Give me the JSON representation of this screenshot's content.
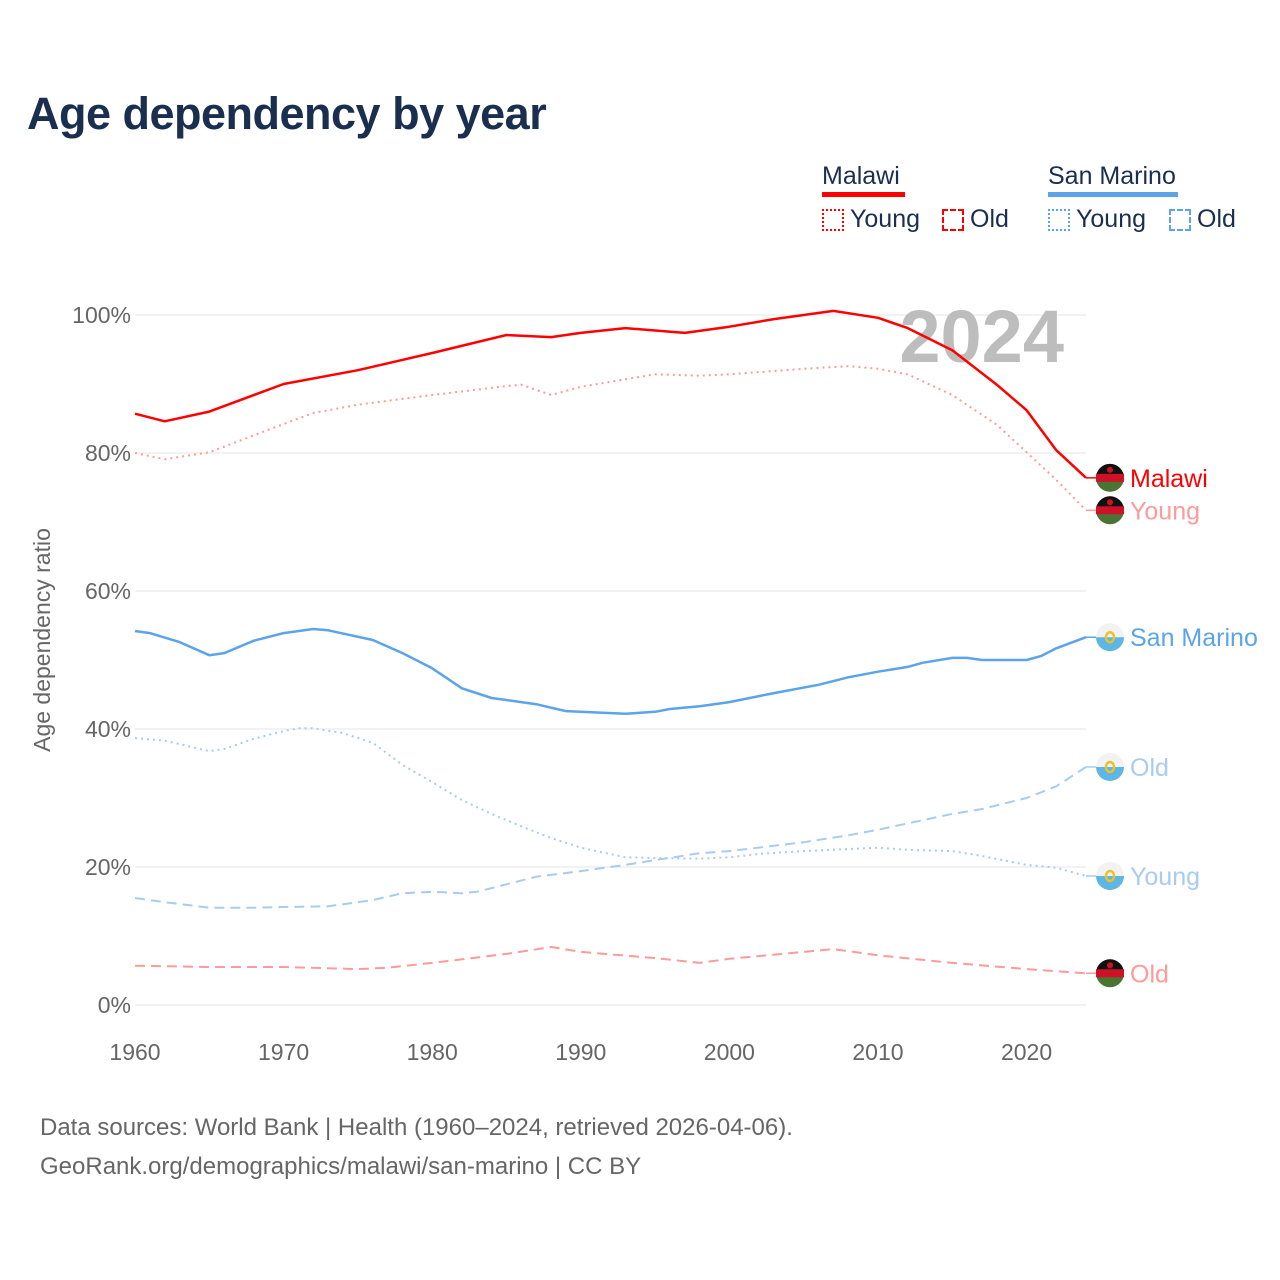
{
  "title": "Age dependency by year",
  "legend": {
    "countries": [
      {
        "name": "Malawi",
        "color": "#ff0000",
        "items": [
          "Young",
          "Old"
        ]
      },
      {
        "name": "San Marino",
        "color": "#5ba4ea",
        "items": [
          "Young",
          "Old"
        ]
      }
    ]
  },
  "footer": {
    "line1": "Data sources: World Bank | Health (1960–2024, retrieved 2026-04-06).",
    "line2": "GeoRank.org/demographics/malawi/san-marino | CC BY"
  },
  "chart_data": {
    "type": "line",
    "title": "Age dependency by year",
    "ylabel": "Age dependency ratio",
    "xlabel": "",
    "xlim": [
      1960,
      2024
    ],
    "ylim": [
      0,
      100
    ],
    "xticks": [
      1960,
      1970,
      1980,
      1990,
      2000,
      2010,
      2020
    ],
    "yticks": [
      0,
      20,
      40,
      60,
      80,
      100
    ],
    "ytick_labels": [
      "0%",
      "20%",
      "40%",
      "60%",
      "80%",
      "100%"
    ],
    "grid": true,
    "year_watermark": "2024",
    "legend_position": "top-right",
    "series": [
      {
        "name": "Malawi",
        "label": "Malawi",
        "color": "#ff0000",
        "style": "solid",
        "flag": "malawi",
        "x": [
          1960,
          1962,
          1965,
          1970,
          1975,
          1980,
          1985,
          1988,
          1990,
          1993,
          1997,
          2000,
          2003,
          2007,
          2010,
          2012,
          2015,
          2018,
          2020,
          2022,
          2024
        ],
        "y": [
          85.7,
          84.6,
          86,
          90,
          92,
          94.5,
          97.1,
          96.8,
          97.4,
          98.1,
          97.4,
          98.3,
          99.4,
          100.6,
          99.6,
          98.1,
          94.9,
          89.9,
          86.2,
          80.4,
          76.4
        ]
      },
      {
        "name": "Malawi Young",
        "label": "Young",
        "color": "#ff9a9a",
        "style": "dotted",
        "flag": "malawi",
        "x": [
          1960,
          1962,
          1965,
          1970,
          1972,
          1975,
          1980,
          1985,
          1986,
          1988,
          1990,
          1995,
          1998,
          2000,
          2005,
          2008,
          2010,
          2012,
          2015,
          2018,
          2020,
          2022,
          2024
        ],
        "y": [
          80,
          79.1,
          80.1,
          84.2,
          85.8,
          87,
          88.4,
          89.7,
          89.9,
          88.4,
          89.6,
          91.4,
          91.2,
          91.4,
          92.2,
          92.6,
          92.2,
          91.4,
          88.4,
          84.1,
          80.1,
          76.1,
          71.7
        ]
      },
      {
        "name": "Malawi Old",
        "label": "Old",
        "color": "#ff9a9a",
        "style": "dashed",
        "flag": "malawi",
        "x": [
          1960,
          1965,
          1970,
          1975,
          1977,
          1980,
          1985,
          1988,
          1990,
          1995,
          1998,
          2000,
          2004,
          2007,
          2010,
          2015,
          2020,
          2024
        ],
        "y": [
          5.7,
          5.5,
          5.5,
          5.2,
          5.4,
          6.1,
          7.4,
          8.4,
          7.7,
          6.8,
          6.1,
          6.7,
          7.5,
          8.1,
          7.2,
          6.1,
          5.2,
          4.6
        ]
      },
      {
        "name": "San Marino",
        "label": "San Marino",
        "color": "#5ba4ea",
        "style": "solid",
        "flag": "san-marino",
        "x": [
          1960,
          1961,
          1963,
          1965,
          1966,
          1968,
          1970,
          1972,
          1973,
          1976,
          1978,
          1980,
          1982,
          1984,
          1987,
          1989,
          1993,
          1995,
          1996,
          1998,
          2000,
          2003,
          2006,
          2008,
          2010,
          2012,
          2013,
          2015,
          2016,
          2017,
          2020,
          2021,
          2022,
          2024
        ],
        "y": [
          54.2,
          53.9,
          52.6,
          50.7,
          51,
          52.8,
          53.9,
          54.5,
          54.3,
          52.9,
          51,
          48.8,
          45.9,
          44.5,
          43.6,
          42.6,
          42.2,
          42.5,
          42.9,
          43.3,
          43.9,
          45.2,
          46.4,
          47.5,
          48.3,
          49,
          49.6,
          50.3,
          50.3,
          50,
          50,
          50.6,
          51.7,
          53.3
        ]
      },
      {
        "name": "San Marino Old",
        "label": "Old",
        "color": "#a8cbf2",
        "style": "dashed",
        "flag": "san-marino",
        "x": [
          1960,
          1962,
          1965,
          1968,
          1970,
          1973,
          1976,
          1978,
          1980,
          1982,
          1983,
          1985,
          1987,
          1990,
          1993,
          1995,
          1998,
          2000,
          2005,
          2008,
          2010,
          2015,
          2017,
          2020,
          2022,
          2024
        ],
        "y": [
          15.5,
          14.9,
          14.1,
          14.1,
          14.2,
          14.3,
          15.2,
          16.2,
          16.4,
          16.2,
          16.4,
          17.5,
          18.6,
          19.4,
          20.3,
          21,
          22,
          22.3,
          23.6,
          24.6,
          25.4,
          27.7,
          28.4,
          30,
          31.7,
          34.5
        ]
      },
      {
        "name": "San Marino Young",
        "label": "Young",
        "color": "#a8cbf2",
        "style": "dotted",
        "flag": "san-marino",
        "x": [
          1960,
          1962,
          1965,
          1966,
          1968,
          1970,
          1971,
          1972,
          1974,
          1976,
          1978,
          1980,
          1982,
          1984,
          1986,
          1988,
          1990,
          1993,
          1995,
          1998,
          2000,
          2002,
          2005,
          2010,
          2012,
          2015,
          2017,
          2020,
          2022,
          2024
        ],
        "y": [
          38.7,
          38.3,
          36.8,
          37.1,
          38.6,
          39.7,
          40.1,
          40.1,
          39.4,
          38,
          34.8,
          32.3,
          29.7,
          27.7,
          25.9,
          24.2,
          22.8,
          21.4,
          21.3,
          21.2,
          21.4,
          21.9,
          22.3,
          22.8,
          22.5,
          22.3,
          21.6,
          20.3,
          19.9,
          18.7
        ]
      }
    ]
  }
}
